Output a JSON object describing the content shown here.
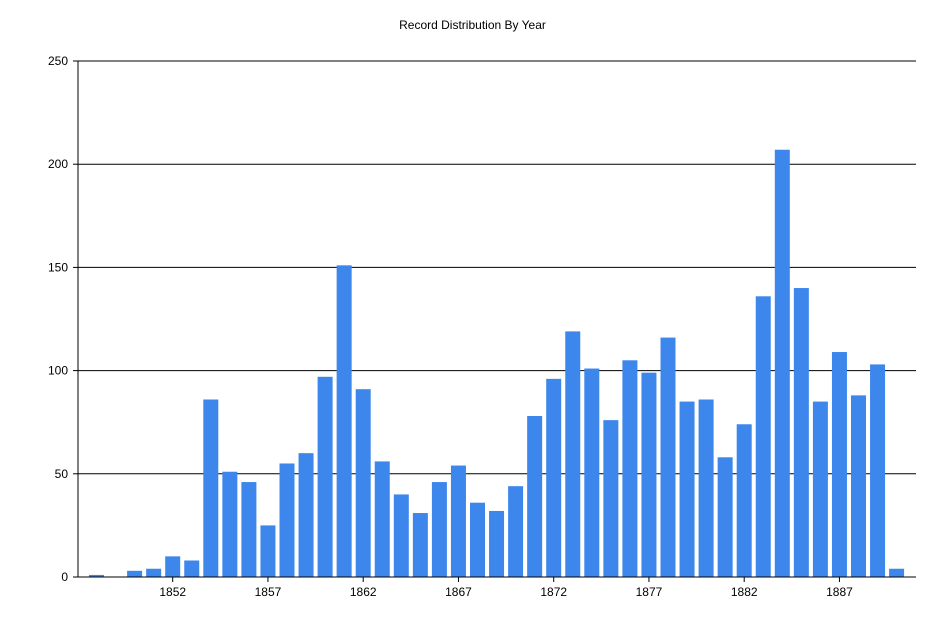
{
  "chart_data": {
    "type": "bar",
    "title": "Record Distribution By Year",
    "xlabel": "",
    "ylabel": "",
    "ylim": [
      0,
      250
    ],
    "yticks": [
      0,
      50,
      100,
      150,
      200,
      250
    ],
    "xticks": [
      1852,
      1857,
      1862,
      1867,
      1872,
      1877,
      1882,
      1887
    ],
    "grid": true,
    "bar_color": "#3D87EC",
    "x": [
      1848,
      1849,
      1850,
      1851,
      1852,
      1853,
      1854,
      1855,
      1856,
      1857,
      1858,
      1859,
      1860,
      1861,
      1862,
      1863,
      1864,
      1865,
      1866,
      1867,
      1868,
      1869,
      1870,
      1871,
      1872,
      1873,
      1874,
      1875,
      1876,
      1877,
      1878,
      1879,
      1880,
      1881,
      1882,
      1883,
      1884,
      1885,
      1886,
      1887,
      1888,
      1889,
      1890
    ],
    "values": [
      1,
      0,
      3,
      4,
      10,
      8,
      86,
      51,
      46,
      25,
      55,
      60,
      97,
      151,
      91,
      56,
      40,
      31,
      46,
      54,
      36,
      32,
      44,
      78,
      96,
      119,
      101,
      76,
      105,
      99,
      116,
      85,
      86,
      58,
      74,
      136,
      207,
      140,
      85,
      109,
      88,
      103,
      4
    ]
  }
}
